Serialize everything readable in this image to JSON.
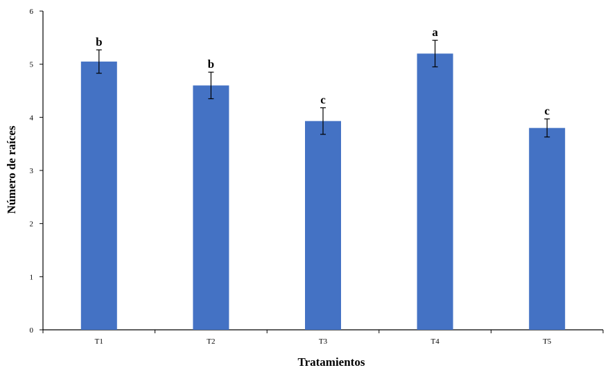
{
  "chart_data": {
    "type": "bar",
    "title": "",
    "xlabel": "Tratamientos",
    "ylabel": "Número de raíces",
    "categories": [
      "T1",
      "T2",
      "T3",
      "T4",
      "T5"
    ],
    "values": [
      5.05,
      4.6,
      3.93,
      5.2,
      3.8
    ],
    "errors": [
      0.22,
      0.25,
      0.25,
      0.25,
      0.17
    ],
    "significance": [
      "b",
      "b",
      "c",
      "a",
      "c"
    ],
    "ylim": [
      0,
      6
    ],
    "yticks": [
      "0",
      "1",
      "2",
      "3",
      "4",
      "5",
      "6"
    ],
    "grid": false,
    "bar_color": "#4472C4"
  }
}
